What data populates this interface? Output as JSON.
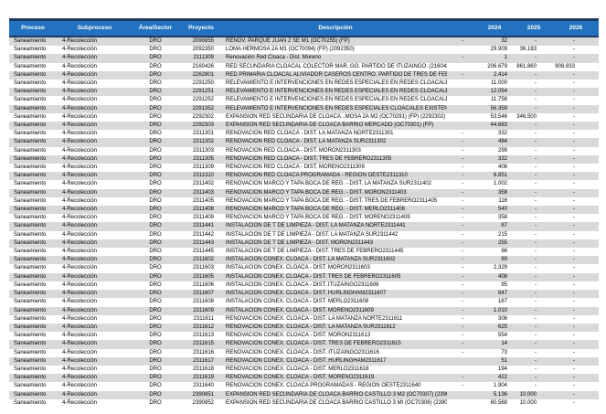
{
  "colors": {
    "header_bg": "#2272BF",
    "header_text": "#FFFFFF",
    "header_border": "#1F3864",
    "row_stripe": "#D9D9D9",
    "row_alt": "#FFFFFF",
    "cell_text": "#000000"
  },
  "table": {
    "column_keys": [
      "proceso",
      "subproceso",
      "area-sector",
      "proyecto",
      "descripcion",
      "pre-year",
      "y2024",
      "y2025",
      "y2026"
    ],
    "headers": [
      "Proceso",
      "Subproceso",
      "Área/Sector",
      "Proyecto",
      "Descripción",
      "",
      "2024",
      "2025",
      "2026"
    ],
    "rows": [
      [
        "Saneamiento",
        "4-Recolección",
        "DRO",
        "2090855",
        "RENOV. PARQUE JUAN 2 SE M1 (OC70255) (FP)",
        "-",
        "32",
        "-",
        "-"
      ],
      [
        "Saneamiento",
        "4-Recolección",
        "DRO",
        "2092350",
        "LOMA HERMOSA 2A M1 (OC70094) (FP) (2092350)",
        "",
        "29.909",
        "36.183",
        "-"
      ],
      [
        "Saneamiento",
        "4-Recolección",
        "DRO",
        "2111309",
        "Renovación Red Cloaca  - Dist. Moreno",
        "-",
        "1",
        "-",
        "-"
      ],
      [
        "Saneamiento",
        "4-Recolección",
        "DRO",
        "2160426",
        "RED SECUNDARIA CLOACAL COLECTOR MAR..GO. PARTIDO DE ITUZAINGO. (2160426)",
        "",
        "206.679",
        "861.860",
        "908.833"
      ],
      [
        "Saneamiento",
        "4-Recolección",
        "DRO",
        "2262801",
        "RED PRIMARIA CLOACAL ALIVIADOR CASEROS CENTRO. PARTIDO DE TRES DE FEBRERO",
        "-",
        "2.414",
        "-",
        "-"
      ],
      [
        "Saneamiento",
        "4-Recolección",
        "DRO",
        "2291250",
        "RELEVAMIENTO E INTERVENCIONES EN REDES ESPECIALES EN REDES CLOACALES EXISTENTES",
        "",
        "11.000",
        "-",
        "-"
      ],
      [
        "Saneamiento",
        "4-Recolección",
        "DRO",
        "2291251",
        "RELEVAMIENTO E INTERVENCIONES EN REDES ESPECIALES EN REDES CLOACALES EXISTENTES",
        "",
        "12.054",
        "-",
        "-"
      ],
      [
        "Saneamiento",
        "4-Recolección",
        "DRO",
        "2291252",
        "RELEVAMIENTO E INTERVENCIONES EN REDES ESPECIALES EN REDES CLOACALES EXISTENTES",
        "",
        "11.758",
        "-",
        "-"
      ],
      [
        "Saneamiento",
        "4-Recolección",
        "DRO",
        "2291352",
        "RELEVAMIENTO E INTERVENCIONES EN REDES ESPECIALES CLOACALES EXISTENTES TRUJUI ES",
        "",
        "56.359",
        "-",
        "-"
      ],
      [
        "Saneamiento",
        "4-Recolección",
        "DRO",
        "2292302",
        "EXPANSION RED SECUNDARIA DE CLOACA ..MOSA 2A M2 (OC70291) (FP) (2292302)",
        "",
        "53.546",
        "346.500",
        "-"
      ],
      [
        "Saneamiento",
        "4-Recolección",
        "DRO",
        "2292303",
        "EXPANSION RED SECUNDARIA DE CLOACA BARRIO MERCADO (OC70301) (FP)",
        "",
        "44.683",
        "-",
        "-"
      ],
      [
        "Saneamiento",
        "4-Recolección",
        "DRO",
        "2311301",
        "RENOVACIÓN RED CLOACA  - DIST. LA MATANZA NORTE2311301",
        "-",
        "332",
        "-",
        "-"
      ],
      [
        "Saneamiento",
        "4-Recolección",
        "DRO",
        "2311302",
        "RENOVACIÓN RED CLOACA  - DIST. LA MATANZA SUR2311302",
        "-",
        "484",
        "-",
        "-"
      ],
      [
        "Saneamiento",
        "4-Recolección",
        "DRO",
        "2311303",
        "RENOVACIÓN RED CLOACA  - DIST. MORÓN2311303",
        "-",
        "299",
        "-",
        "-"
      ],
      [
        "Saneamiento",
        "4-Recolección",
        "DRO",
        "2311305",
        "RENOVACIÓN RED CLOACA  - DIST. TRES DE FEBRERO2311305",
        "-",
        "332",
        "-",
        "-"
      ],
      [
        "Saneamiento",
        "4-Recolección",
        "DRO",
        "2311309",
        "RENOVACIÓN RED CLOACA  - DIST. MORENO2311309",
        "-",
        "406",
        "-",
        "-"
      ],
      [
        "Saneamiento",
        "4-Recolección",
        "DRO",
        "2311310",
        "RENOVACIÓN RED CLOACA PROGRAMADA - REGIÓN OESTE2311310",
        "-",
        "6.851",
        "-",
        "-"
      ],
      [
        "Saneamiento",
        "4-Recolección",
        "DRO",
        "2311402",
        "RENOVACIÓN MARCO Y TAPA BOCA DE REG.  - DIST. LA MATANZA SUR2311402",
        "-",
        "1.002",
        "-",
        "-"
      ],
      [
        "Saneamiento",
        "4-Recolección",
        "DRO",
        "2311403",
        "RENOVACIÓN MARCO Y TAPA BOCA DE REG.  - DIST. MORÓN2311403",
        "-",
        "358",
        "-",
        "-"
      ],
      [
        "Saneamiento",
        "4-Recolección",
        "DRO",
        "2311405",
        "RENOVACIÓN MARCO Y TAPA BOCA DE REG.  - DIST. TRES DE FEBRERO2311405",
        "-",
        "116",
        "-",
        "-"
      ],
      [
        "Saneamiento",
        "4-Recolección",
        "DRO",
        "2311408",
        "RENOVACIÓN MARCO Y TAPA BOCA DE REG.  - DIST. MERLO2311408",
        "-",
        "540",
        "-",
        "-"
      ],
      [
        "Saneamiento",
        "4-Recolección",
        "DRO",
        "2311409",
        "RENOVACIÓN MARCO Y TAPA BOCA DE REG.  - DIST. MORENO2311409",
        "-",
        "358",
        "-",
        "-"
      ],
      [
        "Saneamiento",
        "4-Recolección",
        "DRO",
        "2311441",
        "INSTALACIÓN DE T DE LIMPIEZA - DIST. LA MATANZA NORTE2311441",
        "-",
        "87",
        "-",
        "-"
      ],
      [
        "Saneamiento",
        "4-Recolección",
        "DRO",
        "2311442",
        "INSTALACIÓN DE T DE LIMPIEZA - DIST. LA MATANZA SUR2311442",
        "-",
        "215",
        "-",
        "-"
      ],
      [
        "Saneamiento",
        "4-Recolección",
        "DRO",
        "2311443",
        "INSTALACIÓN DE T DE LIMPIEZA - DIST. MORÓN2311443",
        "-",
        "255",
        "-",
        "-"
      ],
      [
        "Saneamiento",
        "4-Recolección",
        "DRO",
        "2311445",
        "INSTALACIÓN DE T DE LIMPIEZA - DIST. TRES DE FEBRERO2311445",
        "-",
        "66",
        "-",
        "-"
      ],
      [
        "Saneamiento",
        "4-Recolección",
        "DRO",
        "2311602",
        "INSTALACIÓN CONEX. CLOACA - DIST. LA MATANZA SUR2311602",
        "-",
        "89",
        "-",
        "-"
      ],
      [
        "Saneamiento",
        "4-Recolección",
        "DRO",
        "2311603",
        "INSTALACIÓN CONEX. CLOACA - DIST. MORÓN2311603",
        "-",
        "2.329",
        "-",
        "-"
      ],
      [
        "Saneamiento",
        "4-Recolección",
        "DRO",
        "2311605",
        "INSTALACIÓN CONEX. CLOACA - DIST. TRES DE FEBRERO2311605",
        "-",
        "408",
        "-",
        "-"
      ],
      [
        "Saneamiento",
        "4-Recolección",
        "DRO",
        "2311606",
        "INSTALACIÓN CONEX. CLOACA - DIST. ITUZAINGO2311606",
        "-",
        "95",
        "-",
        "-"
      ],
      [
        "Saneamiento",
        "4-Recolección",
        "DRO",
        "2311607",
        "INSTALACIÓN CONEX. CLOACA - DIST. HURLINGHAM2311607",
        "-",
        "847",
        "-",
        "-"
      ],
      [
        "Saneamiento",
        "4-Recolección",
        "DRO",
        "2311608",
        "INSTALACIÓN CONEX. CLOACA - DIST. MERLO2311608",
        "-",
        "167",
        "-",
        "-"
      ],
      [
        "Saneamiento",
        "4-Recolección",
        "DRO",
        "2311609",
        "INSTALACIÓN CONEX. CLOACA - DIST. MORENO2311609",
        "-",
        "1.010",
        "-",
        "-"
      ],
      [
        "Saneamiento",
        "4-Recolección",
        "DRO",
        "2311611",
        "RENOVACIÓN CONEX. CLOACA  - DIST. LA MATANZA NORTE2311611",
        "-",
        "306",
        "-",
        "-"
      ],
      [
        "Saneamiento",
        "4-Recolección",
        "DRO",
        "2311612",
        "RENOVACIÓN CONEX. CLOACA  - DIST. LA MATANZA SUR2311612",
        "-",
        "625",
        "-",
        "-"
      ],
      [
        "Saneamiento",
        "4-Recolección",
        "DRO",
        "2311613",
        "RENOVACIÓN CONEX. CLOACA  - DIST. MORÓN2311613",
        "-",
        "554",
        "-",
        "-"
      ],
      [
        "Saneamiento",
        "4-Recolección",
        "DRO",
        "2311615",
        "RENOVACIÓN CONEX. CLOACA  - DIST. TRES DE FEBRERO2311615",
        "-",
        "14",
        "-",
        "-"
      ],
      [
        "Saneamiento",
        "4-Recolección",
        "DRO",
        "2311616",
        "RENOVACIÓN CONEX. CLOACA  - DIST. ITUZAINGO2311616",
        "-",
        "73",
        "-",
        "-"
      ],
      [
        "Saneamiento",
        "4-Recolección",
        "DRO",
        "2311617",
        "RENOVACIÓN CONEX. CLOACA  - DIST. HURLINGHAM2311617",
        "",
        "51",
        "-",
        "-"
      ],
      [
        "Saneamiento",
        "4-Recolección",
        "DRO",
        "2311618",
        "RENOVACIÓN CONEX. CLOACA  - DIST. MERLO2311618",
        "",
        "194",
        "-",
        "-"
      ],
      [
        "Saneamiento",
        "4-Recolección",
        "DRO",
        "2311619",
        "RENOVACIÓN CONEX. CLOACA  - DIST. MORENO2311619",
        "-",
        "422",
        "-",
        "-"
      ],
      [
        "Saneamiento",
        "4-Recolección",
        "DRO",
        "2311640",
        "RENOVACIÓN CONEX. CLOACA PROGRAMADAS - REGIÓN OESTE2311640",
        "-",
        "1.904",
        "-",
        "-"
      ],
      [
        "Saneamiento",
        "4-Recolección",
        "DRO",
        "2390851",
        "EXPANSION RED SECUNDARIA DE CLOACA BARRIO CASTILLO 3 M2 (OC70307) (2390851)",
        "",
        "5.136",
        "10.000",
        "-"
      ],
      [
        "Saneamiento",
        "4-Recolección",
        "DRO",
        "2390852",
        "EXPANSION RED SECUNDARIA DE CLOACA BARRIO CASTILLO 3 MI (OC70306) (2390852)",
        "",
        "60.568",
        "10.000",
        "-"
      ]
    ]
  }
}
